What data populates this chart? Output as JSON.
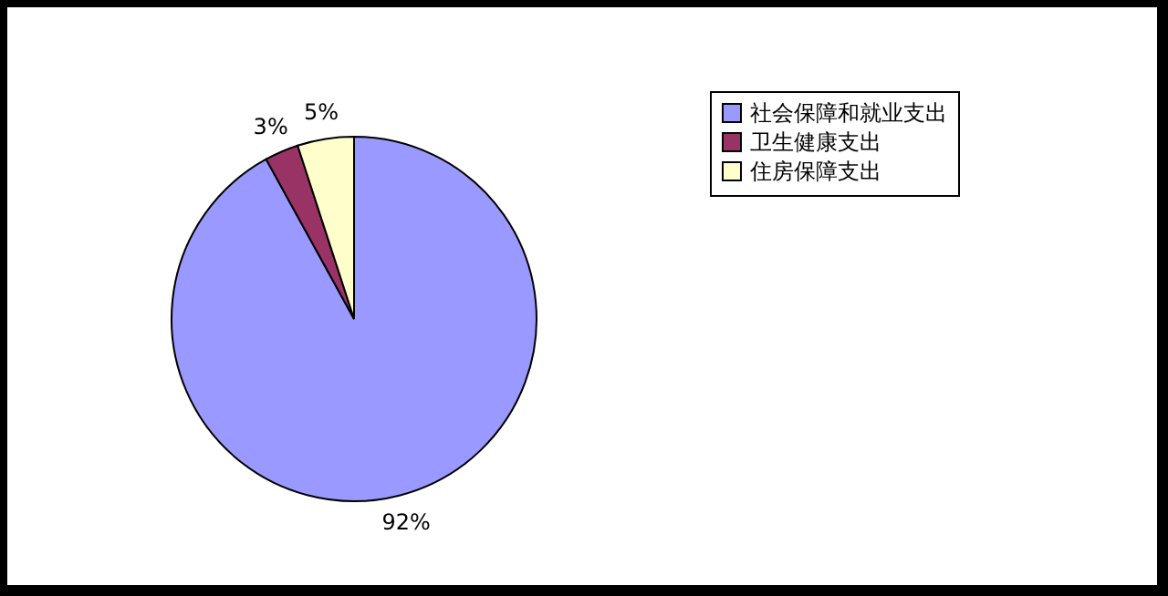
{
  "chart_data": {
    "type": "pie",
    "categories": [
      "社会保障和就业支出",
      "卫生健康支出",
      "住房保障支出"
    ],
    "values": [
      92,
      3,
      5
    ],
    "colors": [
      "#9999ff",
      "#993366",
      "#ffffcc"
    ],
    "value_labels": [
      "92%",
      "3%",
      "5%"
    ],
    "legend": "right"
  }
}
